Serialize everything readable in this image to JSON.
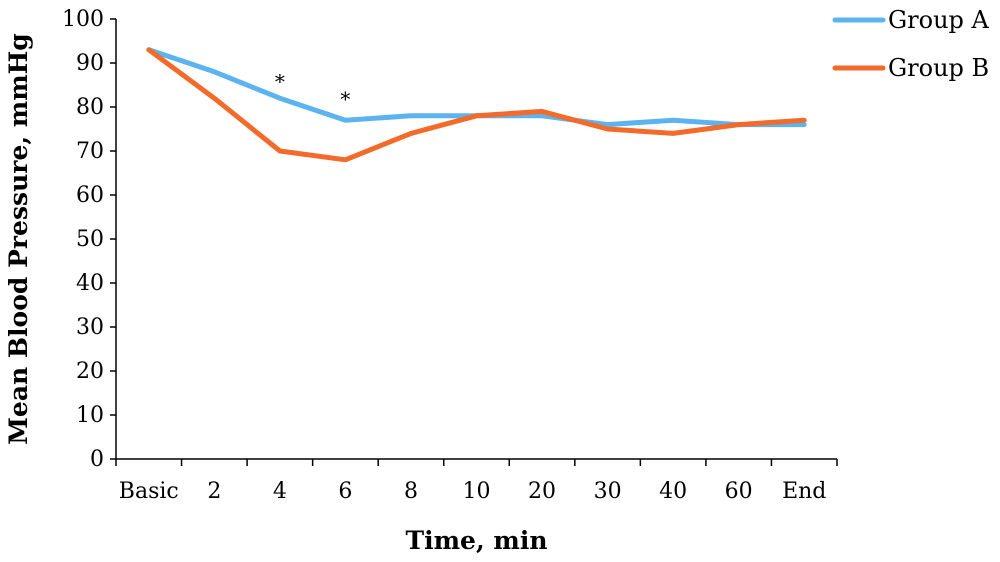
{
  "chart_data": {
    "type": "line",
    "title": "",
    "xlabel": "Time, min",
    "ylabel": "Mean Blood Pressure, mmHg",
    "ylim": [
      0,
      100
    ],
    "yticks": [
      0,
      10,
      20,
      30,
      40,
      50,
      60,
      70,
      80,
      90,
      100
    ],
    "categories": [
      "Basic",
      "2",
      "4",
      "6",
      "8",
      "10",
      "20",
      "30",
      "40",
      "60",
      "End"
    ],
    "series": [
      {
        "name": "Group A",
        "color": "#5BB4F0",
        "values": [
          93,
          88,
          82,
          77,
          78,
          78,
          78,
          76,
          77,
          76,
          76
        ]
      },
      {
        "name": "Group B",
        "color": "#F26B2A",
        "values": [
          93,
          82,
          70,
          68,
          74,
          78,
          79,
          75,
          74,
          76,
          77
        ]
      }
    ],
    "annotations": [
      {
        "text": "*",
        "category": "4",
        "y": 86
      },
      {
        "text": "*",
        "category": "6",
        "y": 82
      }
    ],
    "grid": false,
    "legend_position": "top-right"
  }
}
